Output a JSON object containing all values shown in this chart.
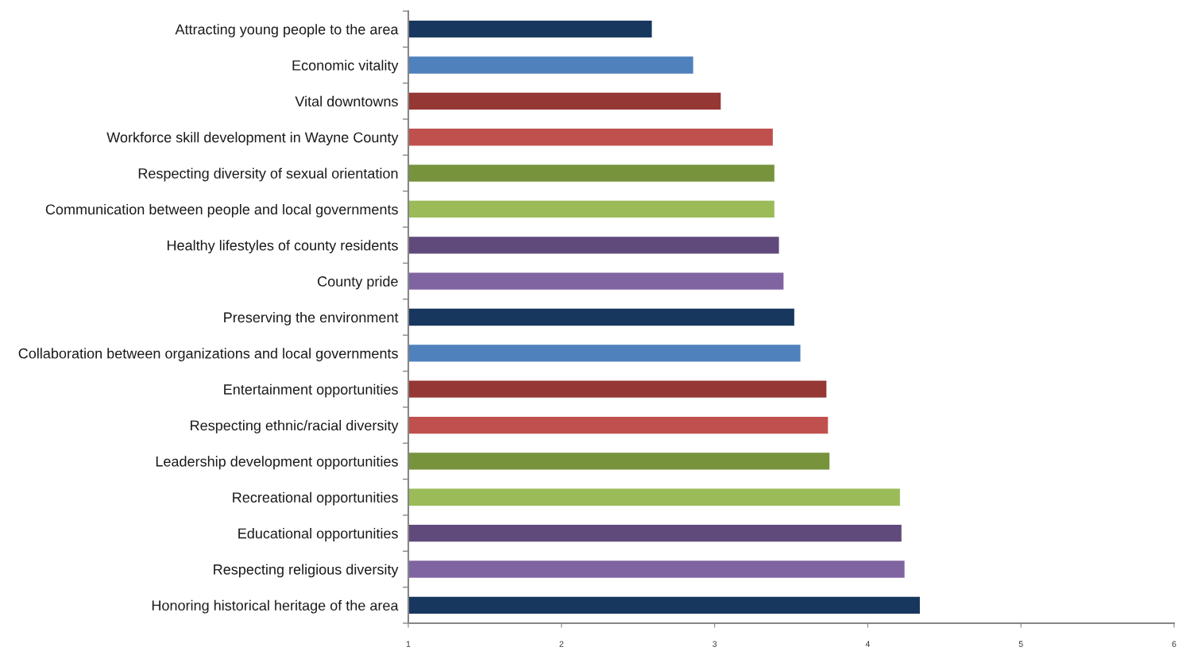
{
  "chart_data": {
    "type": "bar",
    "orientation": "horizontal",
    "categories": [
      "Attracting young people to the area",
      "Economic vitality",
      "Vital downtowns",
      "Workforce skill development in Wayne County",
      "Respecting diversity of sexual orientation",
      "Communication between people and local governments",
      "Healthy lifestyles of county residents",
      "County pride",
      "Preserving the environment",
      "Collaboration between organizations and local governments",
      "Entertainment opportunities",
      "Respecting ethnic/racial diversity",
      "Leadership development opportunities",
      "Recreational opportunities",
      "Educational opportunities",
      "Respecting religious diversity",
      "Honoring historical heritage of the area"
    ],
    "values": [
      2.59,
      2.86,
      3.04,
      3.38,
      3.39,
      3.39,
      3.42,
      3.45,
      3.52,
      3.56,
      3.73,
      3.74,
      3.75,
      4.21,
      4.22,
      4.24,
      4.34
    ],
    "colors": [
      "#17375e",
      "#4f81bd",
      "#953735",
      "#c0504d",
      "#77933c",
      "#9bbb59",
      "#604a7b",
      "#8064a2",
      "#17375e",
      "#4f81bd",
      "#953735",
      "#c0504d",
      "#77933c",
      "#9bbb59",
      "#604a7b",
      "#8064a2",
      "#17375e"
    ],
    "xlim": [
      1,
      6
    ],
    "xticks": [
      1,
      2,
      3,
      4,
      5,
      6
    ],
    "grid": false,
    "legend": false
  }
}
